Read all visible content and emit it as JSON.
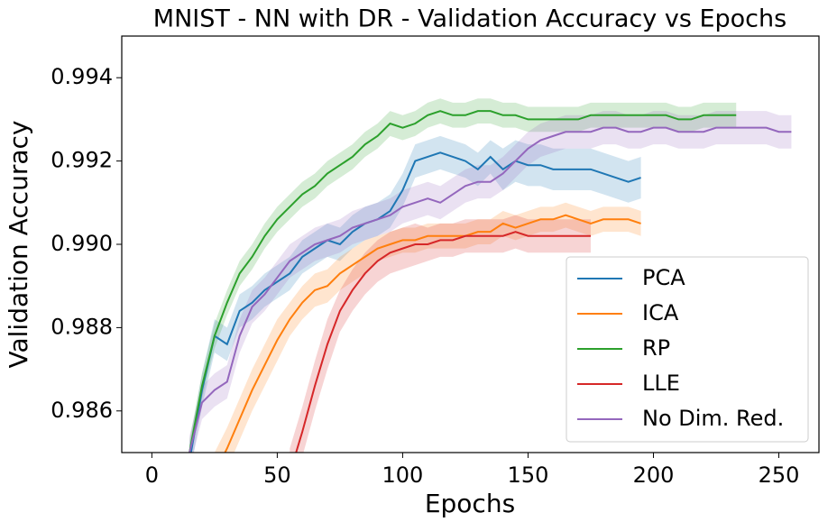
{
  "chart_data": {
    "type": "line",
    "title": "MNIST - NN with DR - Validation Accuracy vs Epochs",
    "x_label": "Epochs",
    "y_label": "Validation Accuracy",
    "xlim": [
      -12,
      266
    ],
    "ylim": [
      0.985,
      0.995
    ],
    "xticks": [
      0,
      50,
      100,
      150,
      200,
      250
    ],
    "yticks": [
      0.986,
      0.988,
      {
        "value": 0.99,
        "label": "0.990"
      },
      0.992,
      0.994
    ],
    "legend": "lower right",
    "series": [
      {
        "name": "PCA",
        "color": "#1f77b4",
        "x": [
          15,
          20,
          25,
          30,
          35,
          40,
          45,
          50,
          55,
          60,
          65,
          70,
          75,
          80,
          85,
          90,
          95,
          100,
          105,
          110,
          115,
          120,
          125,
          130,
          135,
          140,
          145,
          150,
          155,
          160,
          165,
          170,
          175,
          180,
          185,
          190,
          195
        ],
        "values": [
          0.9848,
          0.9865,
          0.9878,
          0.9876,
          0.9884,
          0.9886,
          0.9889,
          0.9891,
          0.9893,
          0.9897,
          0.9899,
          0.9901,
          0.99,
          0.9903,
          0.9905,
          0.9906,
          0.9908,
          0.9913,
          0.992,
          0.9921,
          0.9922,
          0.9921,
          0.992,
          0.9918,
          0.9921,
          0.9918,
          0.992,
          0.9919,
          0.9919,
          0.9918,
          0.9918,
          0.9918,
          0.9918,
          0.9917,
          0.9916,
          0.9915,
          0.9916
        ],
        "error": [
          0.0004,
          0.0004,
          0.0004,
          0.0004,
          0.0004,
          0.0004,
          0.0004,
          0.0004,
          0.0004,
          0.0004,
          0.0004,
          0.0004,
          0.0004,
          0.0004,
          0.0004,
          0.0004,
          0.0004,
          0.0004,
          0.0004,
          0.0004,
          0.0004,
          0.0004,
          0.0004,
          0.0004,
          0.0004,
          0.0005,
          0.0005,
          0.0005,
          0.0005,
          0.0005,
          0.0005,
          0.0005,
          0.0005,
          0.0005,
          0.0005,
          0.0005,
          0.0005
        ]
      },
      {
        "name": "ICA",
        "color": "#ff7f0e",
        "x": [
          25,
          30,
          35,
          40,
          45,
          50,
          55,
          60,
          65,
          70,
          75,
          80,
          85,
          90,
          95,
          100,
          105,
          110,
          115,
          120,
          125,
          130,
          135,
          140,
          145,
          150,
          155,
          160,
          165,
          170,
          175,
          180,
          185,
          190,
          195
        ],
        "values": [
          0.9845,
          0.9851,
          0.9858,
          0.9865,
          0.9871,
          0.9877,
          0.9882,
          0.9886,
          0.9889,
          0.989,
          0.9893,
          0.9895,
          0.9897,
          0.9899,
          0.99,
          0.9901,
          0.9901,
          0.9902,
          0.9902,
          0.9902,
          0.9902,
          0.9903,
          0.9903,
          0.9905,
          0.9904,
          0.9905,
          0.9906,
          0.9906,
          0.9907,
          0.9906,
          0.9905,
          0.9906,
          0.9906,
          0.9906,
          0.9905
        ],
        "error": [
          0.0005,
          0.0005,
          0.0005,
          0.0005,
          0.0005,
          0.0005,
          0.0004,
          0.0004,
          0.0004,
          0.0004,
          0.0004,
          0.0004,
          0.0004,
          0.0003,
          0.0003,
          0.0003,
          0.0003,
          0.0003,
          0.0003,
          0.0003,
          0.0003,
          0.0003,
          0.0003,
          0.0003,
          0.0003,
          0.0003,
          0.0003,
          0.0003,
          0.0003,
          0.0003,
          0.0003,
          0.0003,
          0.0003,
          0.0003,
          0.0003
        ]
      },
      {
        "name": "RP",
        "color": "#2ca02c",
        "x": [
          15,
          20,
          25,
          30,
          35,
          40,
          45,
          50,
          55,
          60,
          65,
          70,
          75,
          80,
          85,
          90,
          95,
          100,
          105,
          110,
          115,
          120,
          125,
          130,
          135,
          140,
          145,
          150,
          155,
          160,
          165,
          170,
          175,
          180,
          185,
          190,
          195,
          200,
          205,
          210,
          215,
          220,
          225,
          230,
          233
        ],
        "values": [
          0.985,
          0.9866,
          0.9878,
          0.9886,
          0.9893,
          0.9897,
          0.9902,
          0.9906,
          0.9909,
          0.9912,
          0.9914,
          0.9917,
          0.9919,
          0.9921,
          0.9924,
          0.9926,
          0.9929,
          0.9928,
          0.9929,
          0.9931,
          0.9932,
          0.9931,
          0.9931,
          0.9932,
          0.9932,
          0.9931,
          0.9931,
          0.993,
          0.993,
          0.993,
          0.993,
          0.993,
          0.9931,
          0.9931,
          0.9931,
          0.9931,
          0.9931,
          0.9931,
          0.9931,
          0.993,
          0.993,
          0.9931,
          0.9931,
          0.9931,
          0.9931
        ],
        "error": [
          0.0003,
          0.0003,
          0.0003,
          0.0003,
          0.0003,
          0.0003,
          0.0003,
          0.0003,
          0.0003,
          0.0003,
          0.0003,
          0.0003,
          0.0003,
          0.0003,
          0.0003,
          0.0003,
          0.0003,
          0.0003,
          0.0003,
          0.0003,
          0.0003,
          0.0003,
          0.0003,
          0.0003,
          0.0003,
          0.0003,
          0.0003,
          0.0003,
          0.0003,
          0.0003,
          0.0003,
          0.0003,
          0.0003,
          0.0003,
          0.0003,
          0.0003,
          0.0003,
          0.0003,
          0.0003,
          0.0003,
          0.0003,
          0.0003,
          0.0003,
          0.0003,
          0.0003
        ]
      },
      {
        "name": "LLE",
        "color": "#d62728",
        "x": [
          55,
          60,
          65,
          70,
          75,
          80,
          85,
          90,
          95,
          100,
          105,
          110,
          115,
          120,
          125,
          130,
          135,
          140,
          145,
          150,
          155,
          160,
          165,
          170,
          175
        ],
        "values": [
          0.9845,
          0.9855,
          0.9866,
          0.9876,
          0.9884,
          0.9889,
          0.9893,
          0.9896,
          0.9898,
          0.9899,
          0.99,
          0.99,
          0.9901,
          0.9901,
          0.9902,
          0.9902,
          0.9902,
          0.9902,
          0.9903,
          0.9902,
          0.9902,
          0.9902,
          0.9902,
          0.9902,
          0.9902
        ],
        "error": [
          0.0006,
          0.0006,
          0.0006,
          0.0006,
          0.0005,
          0.0005,
          0.0005,
          0.0005,
          0.0005,
          0.0005,
          0.0005,
          0.0004,
          0.0004,
          0.0004,
          0.0004,
          0.0004,
          0.0004,
          0.0004,
          0.0004,
          0.0004,
          0.0004,
          0.0004,
          0.0004,
          0.0004,
          0.0004
        ]
      },
      {
        "name": "No Dim. Red.",
        "color": "#9467bd",
        "x": [
          15,
          20,
          25,
          30,
          35,
          40,
          45,
          50,
          55,
          60,
          65,
          70,
          75,
          80,
          85,
          90,
          95,
          100,
          105,
          110,
          115,
          120,
          125,
          130,
          135,
          140,
          145,
          150,
          155,
          160,
          165,
          170,
          175,
          180,
          185,
          190,
          195,
          200,
          205,
          210,
          215,
          220,
          225,
          230,
          235,
          240,
          245,
          250,
          255
        ],
        "values": [
          0.985,
          0.9862,
          0.9865,
          0.9867,
          0.9878,
          0.9885,
          0.9888,
          0.9892,
          0.9896,
          0.9898,
          0.99,
          0.9901,
          0.9902,
          0.9904,
          0.9905,
          0.9906,
          0.9907,
          0.9909,
          0.991,
          0.9911,
          0.991,
          0.9912,
          0.9914,
          0.9915,
          0.9915,
          0.9917,
          0.992,
          0.9923,
          0.9925,
          0.9926,
          0.9927,
          0.9927,
          0.9927,
          0.9928,
          0.9928,
          0.9927,
          0.9927,
          0.9928,
          0.9928,
          0.9927,
          0.9927,
          0.9927,
          0.9928,
          0.9928,
          0.9928,
          0.9928,
          0.9928,
          0.9927,
          0.9927
        ],
        "error": [
          0.0004,
          0.0004,
          0.0004,
          0.0004,
          0.0004,
          0.0004,
          0.0004,
          0.0004,
          0.0004,
          0.0004,
          0.0004,
          0.0004,
          0.0004,
          0.0004,
          0.0004,
          0.0004,
          0.0004,
          0.0004,
          0.0004,
          0.0004,
          0.0004,
          0.0004,
          0.0004,
          0.0004,
          0.0004,
          0.0004,
          0.0004,
          0.0004,
          0.0004,
          0.0004,
          0.0004,
          0.0004,
          0.0004,
          0.0004,
          0.0004,
          0.0004,
          0.0004,
          0.0004,
          0.0004,
          0.0004,
          0.0004,
          0.0004,
          0.0004,
          0.0004,
          0.0004,
          0.0004,
          0.0004,
          0.0004,
          0.0004
        ]
      }
    ]
  }
}
